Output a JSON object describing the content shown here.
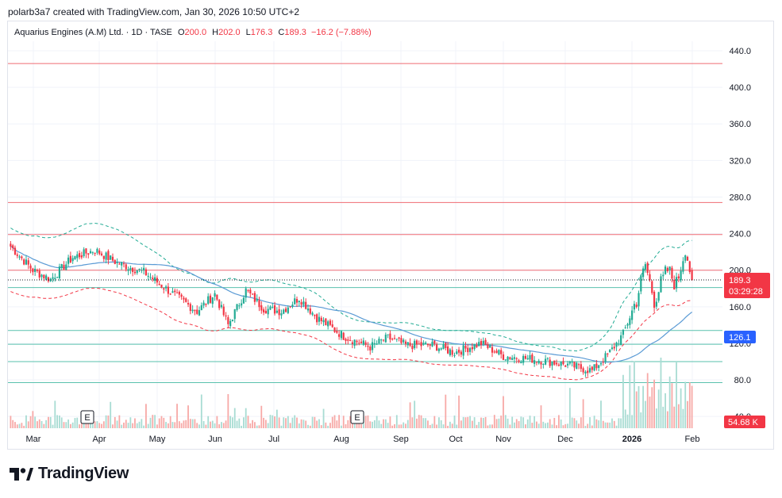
{
  "header": {
    "credit": "polarb3a7 created with TradingView.com, Jan 30, 2026 10:50 UTC+2"
  },
  "legend": {
    "name": "Aquarius Engines (A.M) Ltd. · 1D · TASE",
    "o_label": "O",
    "o_value": "200.0",
    "h_label": "H",
    "h_value": "202.0",
    "l_label": "L",
    "l_value": "176.3",
    "c_label": "C",
    "c_value": "189.3",
    "change": "−16.2 (−7.88%)"
  },
  "brand": {
    "text": "TradingView"
  },
  "colors": {
    "up": "#22ab94",
    "down": "#f23645",
    "ma": "#2962ff",
    "ma_line": "#5b9bd5",
    "bb_upper": "#22ab94",
    "bb_lower": "#f23645",
    "vol_up": "#a8dcd3",
    "vol_down": "#f7a9a7"
  },
  "chart_data": {
    "type": "candlestick",
    "x_ticks": [
      "Mar",
      "Apr",
      "May",
      "Jun",
      "Jul",
      "Aug",
      "Sep",
      "Oct",
      "Nov",
      "Dec",
      "2026",
      "Feb"
    ],
    "y_ticks": [
      "440.0",
      "400.0",
      "360.0",
      "320.0",
      "280.0",
      "240.0",
      "200.0",
      "160.0",
      "120.0",
      "80.0",
      "40.0"
    ],
    "ylim": [
      36,
      462
    ],
    "price_label": "189.3",
    "countdown_label": "03:29:28",
    "ma_label": "126.1",
    "volume_label": "54.68 K",
    "event_markers": [
      {
        "label": "E",
        "month": "Apr"
      },
      {
        "label": "E",
        "month": "Aug"
      }
    ],
    "horizontal_lines": [
      {
        "value": 426,
        "color": "red"
      },
      {
        "value": 274,
        "color": "red"
      },
      {
        "value": 239,
        "color": "red"
      },
      {
        "value": 200,
        "color": "red"
      },
      {
        "value": 181,
        "color": "green"
      },
      {
        "value": 134,
        "color": "green"
      },
      {
        "value": 119,
        "color": "green"
      },
      {
        "value": 100,
        "color": "green"
      },
      {
        "value": 77,
        "color": "green"
      }
    ],
    "key_points": [
      {
        "d": 0,
        "p": 226
      },
      {
        "d": 10,
        "p": 200
      },
      {
        "d": 18,
        "p": 190
      },
      {
        "d": 28,
        "p": 214
      },
      {
        "d": 38,
        "p": 222
      },
      {
        "d": 48,
        "p": 208
      },
      {
        "d": 60,
        "p": 198
      },
      {
        "d": 72,
        "p": 176
      },
      {
        "d": 84,
        "p": 155
      },
      {
        "d": 92,
        "p": 174
      },
      {
        "d": 98,
        "p": 140
      },
      {
        "d": 106,
        "p": 178
      },
      {
        "d": 114,
        "p": 158
      },
      {
        "d": 122,
        "p": 155
      },
      {
        "d": 130,
        "p": 170
      },
      {
        "d": 138,
        "p": 148
      },
      {
        "d": 150,
        "p": 128
      },
      {
        "d": 162,
        "p": 116
      },
      {
        "d": 170,
        "p": 126
      },
      {
        "d": 178,
        "p": 118
      },
      {
        "d": 190,
        "p": 118
      },
      {
        "d": 200,
        "p": 110
      },
      {
        "d": 212,
        "p": 120
      },
      {
        "d": 222,
        "p": 106
      },
      {
        "d": 238,
        "p": 102
      },
      {
        "d": 252,
        "p": 96
      },
      {
        "d": 262,
        "p": 90
      },
      {
        "d": 270,
        "p": 110
      },
      {
        "d": 276,
        "p": 130
      },
      {
        "d": 282,
        "p": 168
      },
      {
        "d": 286,
        "p": 206
      },
      {
        "d": 290,
        "p": 168
      },
      {
        "d": 296,
        "p": 200
      },
      {
        "d": 300,
        "p": 184
      },
      {
        "d": 304,
        "p": 226
      },
      {
        "d": 307,
        "p": 189
      }
    ]
  }
}
